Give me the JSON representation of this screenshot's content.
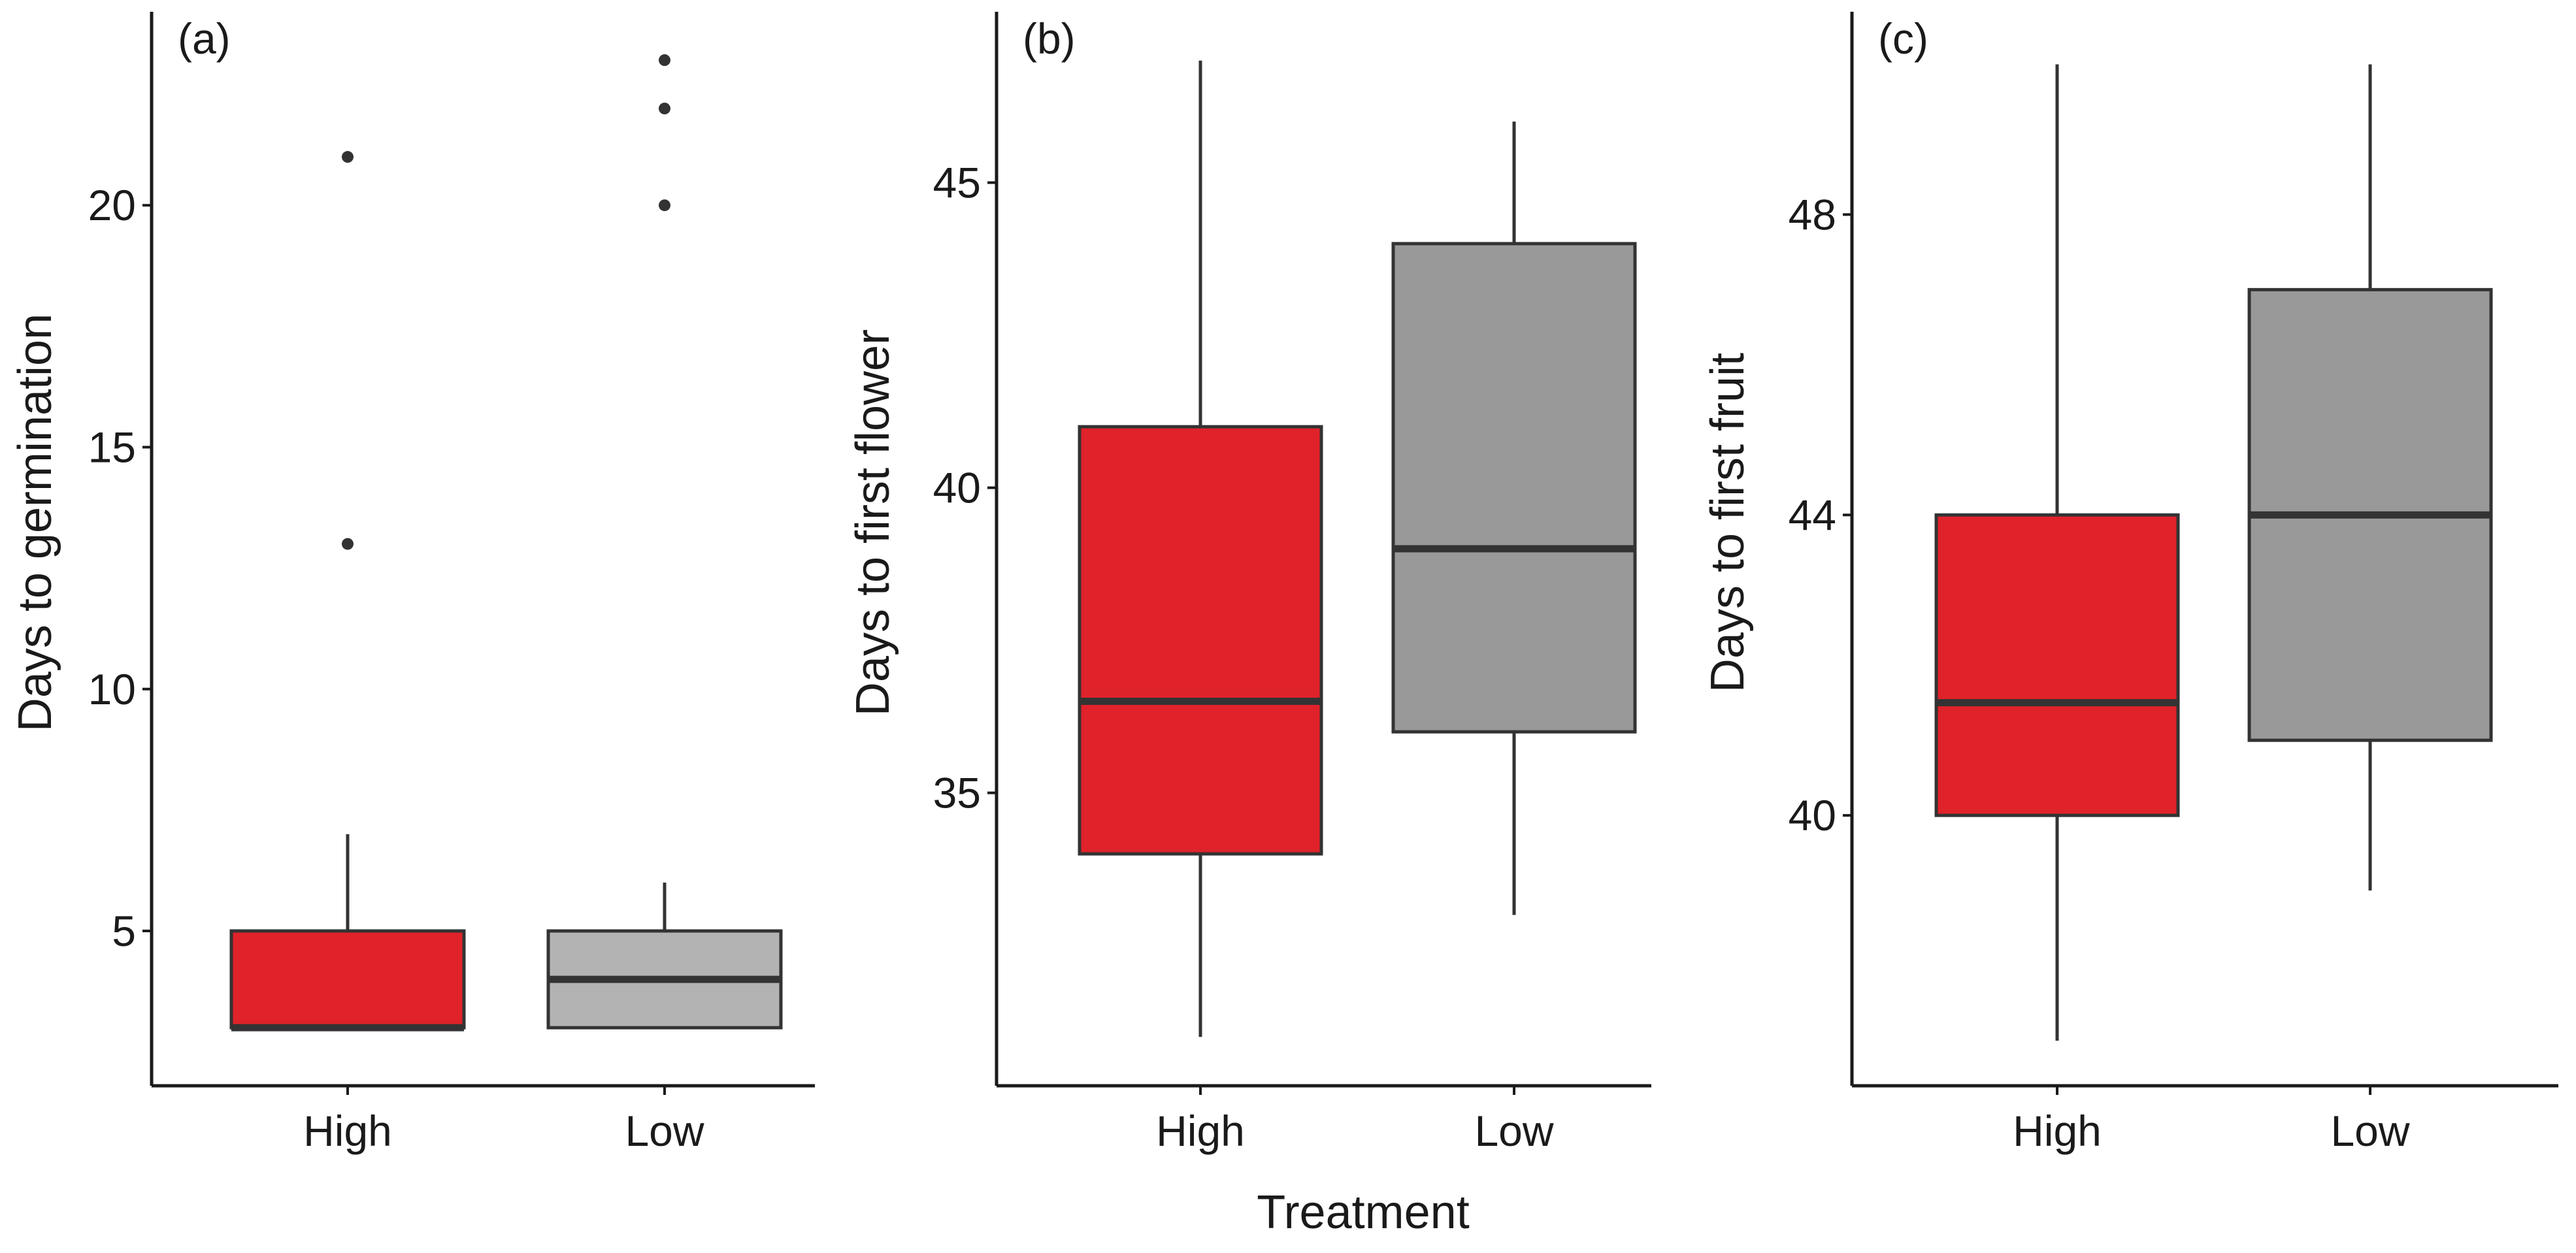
{
  "chart_data": [
    {
      "type": "box",
      "panel_label": "(a)",
      "ylabel": "Days to germination",
      "xlabel": "",
      "categories": [
        "High",
        "Low"
      ],
      "ylim": [
        1.8,
        24
      ],
      "yticks": [
        5,
        10,
        15,
        20
      ],
      "colors": [
        "#e0222a",
        "#b3b3b3"
      ],
      "boxes": [
        {
          "category": "High",
          "whisker_low": 3,
          "q1": 3,
          "median": 3,
          "q3": 5,
          "whisker_high": 7,
          "outliers": [
            13,
            21
          ]
        },
        {
          "category": "Low",
          "whisker_low": 3,
          "q1": 3,
          "median": 4,
          "q3": 5,
          "whisker_high": 6,
          "outliers": [
            20,
            22,
            23
          ]
        }
      ]
    },
    {
      "type": "box",
      "panel_label": "(b)",
      "ylabel": "Days to first flower",
      "xlabel": "Treatment",
      "categories": [
        "High",
        "Low"
      ],
      "ylim": [
        30.2,
        47.8
      ],
      "yticks": [
        35,
        40,
        45
      ],
      "colors": [
        "#e0222a",
        "#999999"
      ],
      "boxes": [
        {
          "category": "High",
          "whisker_low": 31,
          "q1": 34,
          "median": 36.5,
          "q3": 41,
          "whisker_high": 47,
          "outliers": []
        },
        {
          "category": "Low",
          "whisker_low": 33,
          "q1": 36,
          "median": 39,
          "q3": 44,
          "whisker_high": 46,
          "outliers": []
        }
      ]
    },
    {
      "type": "box",
      "panel_label": "(c)",
      "ylabel": "Days to first fruit",
      "xlabel": "",
      "categories": [
        "High",
        "Low"
      ],
      "ylim": [
        36.4,
        50.7
      ],
      "yticks": [
        40,
        44,
        48
      ],
      "colors": [
        "#e0222a",
        "#999999"
      ],
      "boxes": [
        {
          "category": "High",
          "whisker_low": 37,
          "q1": 40,
          "median": 41.5,
          "q3": 44,
          "whisker_high": 50,
          "outliers": []
        },
        {
          "category": "Low",
          "whisker_low": 39,
          "q1": 41,
          "median": 44,
          "q3": 47,
          "whisker_high": 50,
          "outliers": []
        }
      ]
    }
  ]
}
